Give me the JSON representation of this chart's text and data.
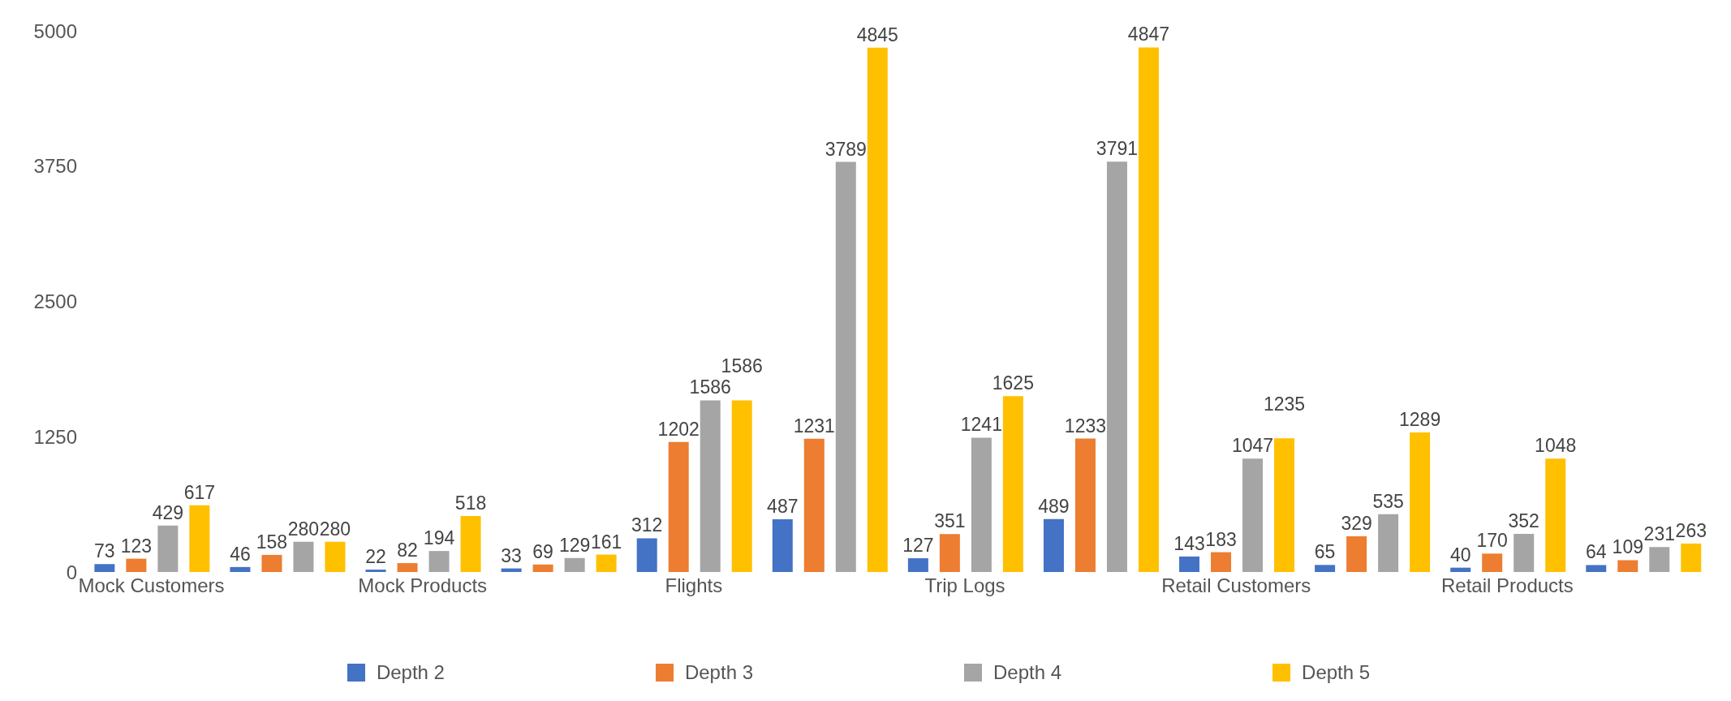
{
  "chart_data": {
    "type": "bar",
    "categories": [
      "Mock Customers",
      null,
      "Mock Products",
      null,
      "Flights",
      null,
      "Trip Logs",
      null,
      "Retail Customers",
      null,
      "Retail Products",
      null
    ],
    "series": [
      {
        "name": "Depth 2",
        "color": "#4472c4",
        "values": [
          73,
          46,
          22,
          33,
          312,
          487,
          127,
          489,
          143,
          65,
          40,
          64
        ]
      },
      {
        "name": "Depth 3",
        "color": "#ed7d31",
        "values": [
          123,
          158,
          82,
          69,
          1202,
          1231,
          351,
          1233,
          183,
          329,
          170,
          109
        ]
      },
      {
        "name": "Depth 4",
        "color": "#a5a5a5",
        "values": [
          429,
          280,
          194,
          129,
          1586,
          3789,
          1241,
          3791,
          1047,
          535,
          352,
          231
        ]
      },
      {
        "name": "Depth 5",
        "color": "#ffc000",
        "values": [
          617,
          280,
          518,
          161,
          1586,
          4845,
          1625,
          4847,
          1235,
          1289,
          1048,
          263
        ]
      }
    ],
    "ylim": [
      0,
      5000
    ],
    "yticks": [
      0,
      1250,
      2500,
      3750,
      5000
    ],
    "grid": false,
    "legend": "bottom",
    "data_labels": true
  }
}
